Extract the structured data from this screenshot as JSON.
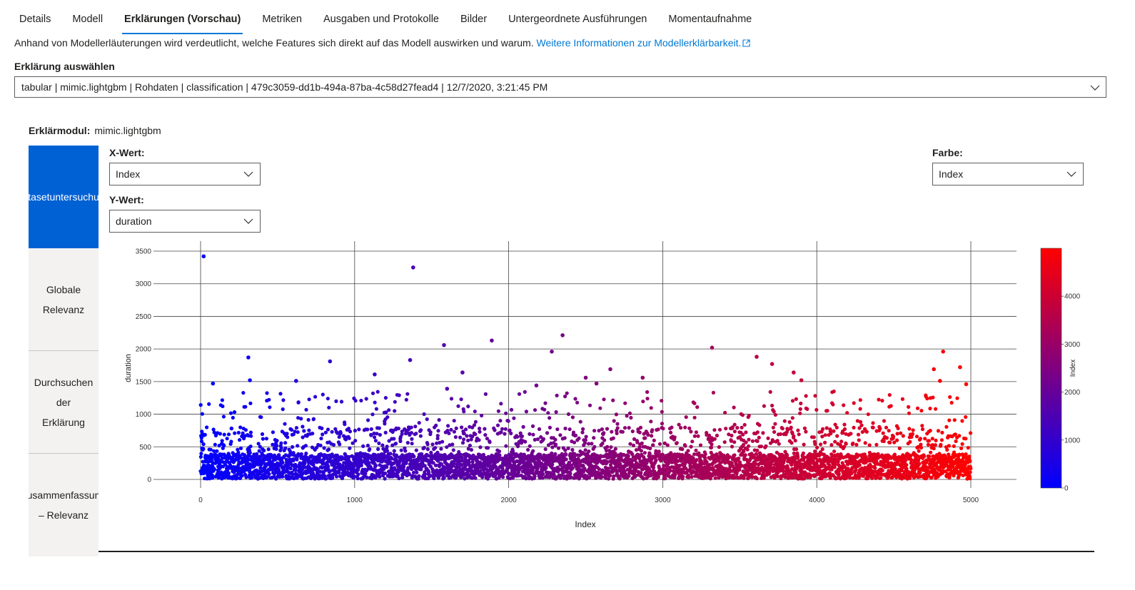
{
  "tabs": [
    {
      "label": "Details",
      "active": false
    },
    {
      "label": "Modell",
      "active": false
    },
    {
      "label": "Erklärungen (Vorschau)",
      "active": true
    },
    {
      "label": "Metriken",
      "active": false
    },
    {
      "label": "Ausgaben und Protokolle",
      "active": false
    },
    {
      "label": "Bilder",
      "active": false
    },
    {
      "label": "Untergeordnete Ausführungen",
      "active": false
    },
    {
      "label": "Momentaufnahme",
      "active": false
    }
  ],
  "intro": {
    "text": "Anhand von Modellerläuterungen wird verdeutlicht, welche Features sich direkt auf das Modell auswirken und warum.",
    "link": "Weitere Informationen zur Modellerklärbarkeit."
  },
  "explanation": {
    "label": "Erklärung auswählen",
    "selected": "tabular | mimic.lightgbm | Rohdaten | classification | 479c3059-dd1b-494a-87ba-4c58d27fead4 | 12/7/2020, 3:21:45 PM"
  },
  "module": {
    "label": "Erklärmodul:",
    "value": "mimic.lightgbm"
  },
  "sidenav": [
    {
      "lines": [
        "tasetuntersuchu"
      ],
      "active": true
    },
    {
      "lines": [
        "Globale",
        "Relevanz"
      ],
      "active": false
    },
    {
      "lines": [
        "Durchsuchen",
        "der",
        "Erklärung"
      ],
      "active": false
    },
    {
      "lines": [
        "usammenfassun",
        "– Relevanz"
      ],
      "active": false
    }
  ],
  "controls": {
    "x_label": "X-Wert:",
    "x_value": "Index",
    "y_label": "Y-Wert:",
    "y_value": "duration",
    "color_label": "Farbe:",
    "color_value": "Index"
  },
  "chart_data": {
    "type": "scatter",
    "xlabel": "Index",
    "ylabel": "duration",
    "xlim": [
      0,
      5000
    ],
    "ylim": [
      0,
      3500
    ],
    "x_ticks": [
      0,
      1000,
      2000,
      3000,
      4000,
      5000
    ],
    "y_ticks": [
      0,
      500,
      1000,
      1500,
      2000,
      2500,
      3000,
      3500
    ],
    "grid": true,
    "colorbar": {
      "label": "Index",
      "ticks": [
        0,
        1000,
        2000,
        3000,
        4000
      ],
      "range": [
        0,
        4999
      ],
      "low_color": "#0000ff",
      "high_color": "#ff0000"
    },
    "point_count": 5000,
    "highlighted_points": [
      {
        "x": 20,
        "y": 3420
      },
      {
        "x": 1380,
        "y": 3250
      },
      {
        "x": 2350,
        "y": 2210
      },
      {
        "x": 1890,
        "y": 2130
      },
      {
        "x": 1580,
        "y": 2060
      },
      {
        "x": 3320,
        "y": 2020
      },
      {
        "x": 4820,
        "y": 1960
      },
      {
        "x": 2280,
        "y": 1960
      },
      {
        "x": 3610,
        "y": 1880
      },
      {
        "x": 310,
        "y": 1870
      },
      {
        "x": 1360,
        "y": 1830
      },
      {
        "x": 840,
        "y": 1810
      },
      {
        "x": 3710,
        "y": 1770
      },
      {
        "x": 4930,
        "y": 1720
      },
      {
        "x": 4760,
        "y": 1690
      },
      {
        "x": 2660,
        "y": 1690
      },
      {
        "x": 1700,
        "y": 1640
      },
      {
        "x": 3850,
        "y": 1640
      },
      {
        "x": 1130,
        "y": 1610
      },
      {
        "x": 2500,
        "y": 1560
      },
      {
        "x": 2870,
        "y": 1560
      },
      {
        "x": 4970,
        "y": 1460
      },
      {
        "x": 2570,
        "y": 1470
      },
      {
        "x": 80,
        "y": 1470
      },
      {
        "x": 620,
        "y": 1510
      },
      {
        "x": 320,
        "y": 1520
      },
      {
        "x": 4800,
        "y": 1510
      },
      {
        "x": 3900,
        "y": 1520
      },
      {
        "x": 2180,
        "y": 1440
      },
      {
        "x": 1600,
        "y": 1390
      }
    ]
  }
}
